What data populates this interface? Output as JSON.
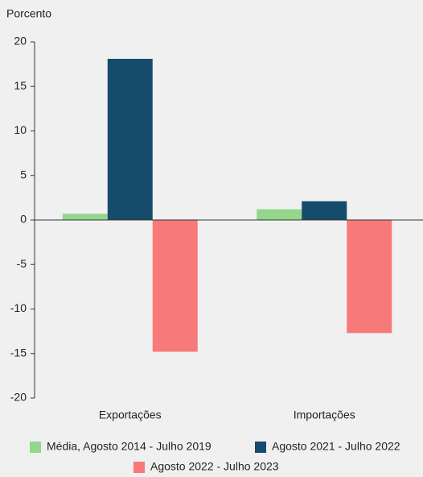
{
  "chart_data": {
    "type": "bar",
    "y_axis_label": "Porcento",
    "categories": [
      "Exportações",
      "Importações"
    ],
    "series": [
      {
        "name": "Média, Agosto 2014 - Julho 2019",
        "color": "#93d68c",
        "values": [
          0.7,
          1.2
        ]
      },
      {
        "name": "Agosto 2021 - Julho 2022",
        "color": "#154b6b",
        "values": [
          18.1,
          2.1
        ]
      },
      {
        "name": "Agosto 2022 - Julho 2023",
        "color": "#f7797a",
        "values": [
          -14.8,
          -12.7
        ]
      }
    ],
    "ylim": [
      -20,
      20
    ],
    "yticks": [
      -20,
      -15,
      -10,
      -5,
      0,
      5,
      10,
      15,
      20
    ],
    "grid": false
  }
}
